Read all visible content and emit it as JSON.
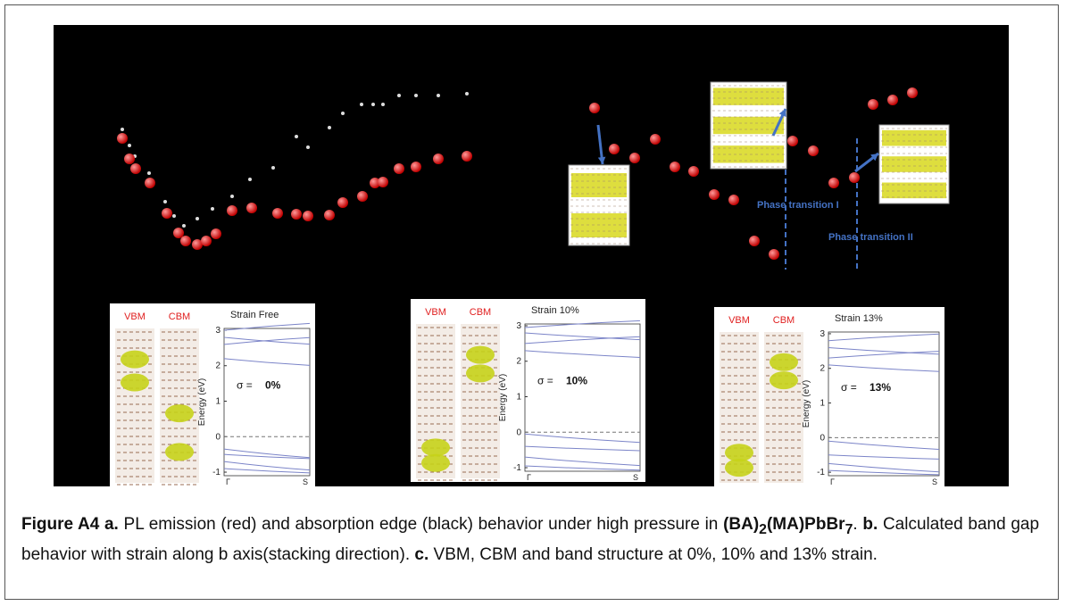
{
  "figure": {
    "annotations": [
      "Phase transition I",
      "Phase transition II"
    ],
    "band_axis": {
      "ylabel": "Energy (eV)",
      "yticks": [
        3,
        2,
        1,
        0,
        -1
      ],
      "ylim": [
        -1.1,
        3.05
      ],
      "xticks": [
        "Γ",
        "S"
      ]
    },
    "panels": [
      {
        "vbm": "VBM",
        "cbm": "CBM",
        "title": "Strain Free",
        "sigma_prefix": "σ =",
        "sigma_value": "0%"
      },
      {
        "vbm": "VBM",
        "cbm": "CBM",
        "title": "Strain 10%",
        "sigma_prefix": "σ =",
        "sigma_value": "10%"
      },
      {
        "vbm": "VBM",
        "cbm": "CBM",
        "title": "Strain 13%",
        "sigma_prefix": "σ =",
        "sigma_value": "13%"
      }
    ]
  },
  "caption": {
    "label_a": "Figure A4 a.",
    "text_a": "PL emission (red) and absorption edge (black) behavior under high pressure in",
    "formula": [
      "(BA)",
      "2",
      "(MA)PbBr",
      "7"
    ],
    "end_a": ".",
    "label_b": "b.",
    "text_b": "Calculated band gap behavior with strain along b axis(stacking direction).",
    "label_c": "c.",
    "text_c": "VBM, CBM and band structure at 0%, 10% and 13% strain."
  }
}
